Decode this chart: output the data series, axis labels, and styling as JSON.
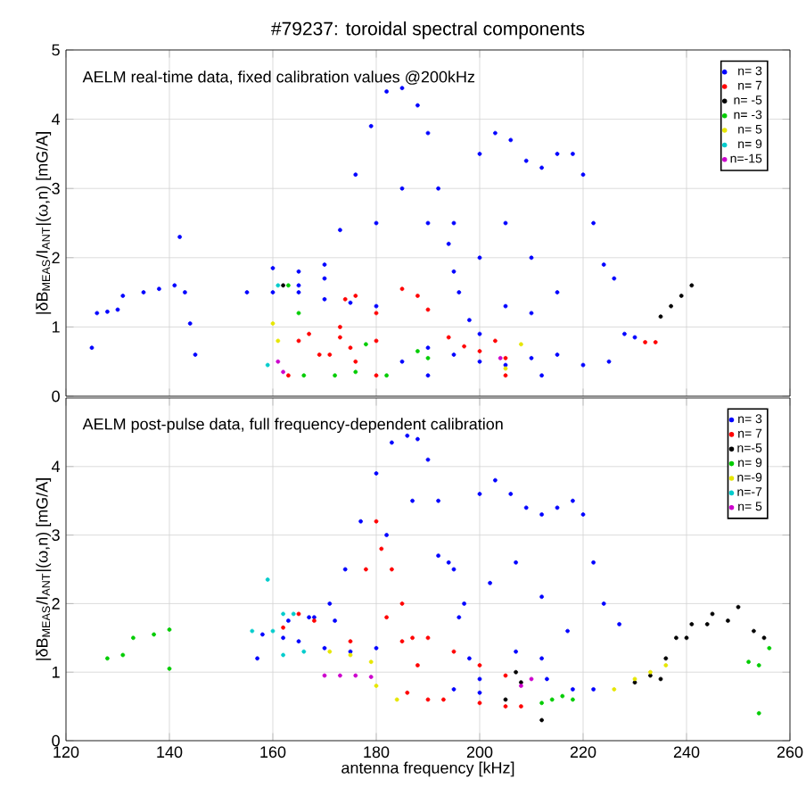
{
  "chart_data": [
    {
      "type": "scatter",
      "title": "#79237: toroidal spectral components",
      "ylabel": "|δB$_{MEAS}$/I$_{ANT}$|(ω,n) [mG/A]",
      "annotations": [
        "AELM real-time data, fixed calibration values @200kHz"
      ],
      "xlim": [
        120,
        260
      ],
      "xticks": [
        120,
        140,
        160,
        180,
        200,
        220,
        240,
        260
      ],
      "ylim": [
        0,
        5
      ],
      "yticks": [
        0,
        1,
        2,
        3,
        4,
        5
      ],
      "tick_labels": "y",
      "grid": true,
      "legend": "top right",
      "marker": "circle",
      "series": [
        {
          "name": "n= 3",
          "color": "#0000ff",
          "x": [
            125,
            126,
            128,
            130,
            131,
            135,
            138,
            141,
            143,
            144,
            145,
            142,
            155,
            160,
            165,
            170,
            175,
            180,
            160,
            165,
            170,
            165,
            170,
            173,
            176,
            179,
            182,
            185,
            188,
            190,
            192,
            194,
            196,
            198,
            200,
            195,
            200,
            203,
            206,
            209,
            212,
            215,
            218,
            220,
            222,
            224,
            226,
            180,
            185,
            190,
            195,
            200,
            205,
            210,
            215,
            210,
            205,
            185,
            190,
            195,
            200,
            205,
            210,
            215,
            220,
            225,
            228,
            230,
            212,
            190
          ],
          "values": [
            0.7,
            1.2,
            1.22,
            1.25,
            1.45,
            1.5,
            1.55,
            1.6,
            1.5,
            1.05,
            0.6,
            2.3,
            1.5,
            1.5,
            1.5,
            1.4,
            1.35,
            1.3,
            1.85,
            1.8,
            1.7,
            1.6,
            1.9,
            2.4,
            3.2,
            3.9,
            4.4,
            4.45,
            4.2,
            3.8,
            3.0,
            2.2,
            1.5,
            1.1,
            0.9,
            2.5,
            3.5,
            3.8,
            3.7,
            3.4,
            3.3,
            3.5,
            3.5,
            3.2,
            2.5,
            1.9,
            1.7,
            2.5,
            3.0,
            2.5,
            1.8,
            2.0,
            2.5,
            2.0,
            1.5,
            1.2,
            1.3,
            0.5,
            0.7,
            0.6,
            0.5,
            0.45,
            0.55,
            0.6,
            0.45,
            0.5,
            0.9,
            0.85,
            0.3,
            0.3
          ]
        },
        {
          "name": "n= 7",
          "color": "#ff0000",
          "x": [
            163,
            165,
            167,
            169,
            171,
            173,
            175,
            176,
            173,
            174,
            176,
            180,
            180,
            180,
            185,
            188,
            190,
            194,
            197,
            200,
            203,
            232,
            234,
            205,
            205
          ],
          "values": [
            0.3,
            0.8,
            0.9,
            0.6,
            0.6,
            0.85,
            0.7,
            0.5,
            1.0,
            1.4,
            1.45,
            0.3,
            0.8,
            1.2,
            1.55,
            1.45,
            1.25,
            0.85,
            0.72,
            0.65,
            0.8,
            0.78,
            0.78,
            0.3,
            0.55
          ]
        },
        {
          "name": "n= -5",
          "color": "#000000",
          "x": [
            235,
            237,
            239,
            241,
            162
          ],
          "values": [
            1.15,
            1.3,
            1.45,
            1.6,
            1.6
          ]
        },
        {
          "name": "n= -3",
          "color": "#00cc00",
          "x": [
            163,
            165,
            166,
            172,
            178,
            182,
            188,
            190,
            176
          ],
          "values": [
            1.6,
            1.2,
            0.3,
            0.3,
            0.75,
            0.3,
            0.65,
            0.55,
            0.35
          ]
        },
        {
          "name": "n= 5",
          "color": "#e6e600",
          "x": [
            160,
            161,
            205,
            208
          ],
          "values": [
            1.05,
            0.8,
            0.4,
            0.75
          ]
        },
        {
          "name": "n= 9",
          "color": "#00cccc",
          "x": [
            161,
            159
          ],
          "values": [
            1.6,
            0.45
          ]
        },
        {
          "name": "n=-15",
          "color": "#cc00cc",
          "x": [
            162,
            161,
            204
          ],
          "values": [
            0.35,
            0.5,
            0.55
          ]
        }
      ]
    },
    {
      "type": "scatter",
      "xlabel": "antenna frequency [kHz]",
      "ylabel": "|δB$_{MEAS}$/I$_{ANT}$|(ω,n) [mG/A]",
      "annotations": [
        "AELM post-pulse data, full frequency-dependent calibration"
      ],
      "xlim": [
        120,
        260
      ],
      "xticks": [
        120,
        140,
        160,
        180,
        200,
        220,
        240,
        260
      ],
      "ylim": [
        0,
        5
      ],
      "yticks": [
        0,
        1,
        2,
        3,
        4
      ],
      "grid": true,
      "legend": "top right",
      "marker": "circle",
      "series": [
        {
          "name": "n= 3",
          "color": "#0000ff",
          "x": [
            157,
            158,
            162,
            165,
            170,
            175,
            180,
            163,
            167,
            172,
            168,
            171,
            174,
            177,
            180,
            183,
            186,
            188,
            190,
            192,
            194,
            196,
            198,
            200,
            195,
            200,
            203,
            206,
            209,
            212,
            215,
            218,
            220,
            222,
            224,
            227,
            182,
            187,
            192,
            197,
            202,
            207,
            212,
            217,
            212,
            207,
            195,
            200,
            213,
            222,
            218
          ],
          "values": [
            1.2,
            1.55,
            1.5,
            1.45,
            1.35,
            1.3,
            1.35,
            1.75,
            1.8,
            1.75,
            1.8,
            2.0,
            2.5,
            3.2,
            3.9,
            4.35,
            4.45,
            4.4,
            4.1,
            3.5,
            2.6,
            1.8,
            1.2,
            0.9,
            2.5,
            3.6,
            3.8,
            3.6,
            3.4,
            3.3,
            3.4,
            3.5,
            3.3,
            2.6,
            2.0,
            1.7,
            3.0,
            3.5,
            2.7,
            2.0,
            2.3,
            2.6,
            2.1,
            1.6,
            1.2,
            1.3,
            0.75,
            0.7,
            0.9,
            0.75,
            0.75
          ]
        },
        {
          "name": "n= 7",
          "color": "#ff0000",
          "x": [
            162,
            165,
            168,
            180,
            181,
            183,
            185,
            187,
            188,
            186,
            190,
            178,
            182,
            175,
            185,
            190,
            195,
            200,
            205,
            200,
            205,
            208,
            193
          ],
          "values": [
            1.65,
            1.85,
            1.75,
            3.2,
            2.8,
            2.5,
            2.0,
            1.5,
            1.1,
            0.7,
            0.6,
            2.5,
            1.8,
            1.45,
            1.45,
            1.5,
            1.3,
            1.1,
            0.95,
            0.55,
            0.5,
            0.5,
            0.6
          ]
        },
        {
          "name": "n=-5",
          "color": "#000000",
          "x": [
            205,
            207,
            208,
            230,
            233,
            236,
            238,
            241,
            245,
            250,
            240,
            244,
            248,
            253,
            255,
            235,
            212
          ],
          "values": [
            0.6,
            1.0,
            0.85,
            0.85,
            0.95,
            1.2,
            1.5,
            1.7,
            1.85,
            1.95,
            1.5,
            1.7,
            1.75,
            1.6,
            1.5,
            0.9,
            0.3
          ]
        },
        {
          "name": "n= 9",
          "color": "#00cc00",
          "x": [
            128,
            131,
            133,
            137,
            140,
            140,
            212,
            214,
            216,
            218,
            254,
            256,
            254,
            252
          ],
          "values": [
            1.2,
            1.25,
            1.5,
            1.55,
            1.62,
            1.05,
            0.55,
            0.6,
            0.65,
            0.6,
            1.1,
            1.35,
            0.4,
            1.15
          ]
        },
        {
          "name": "n=-9",
          "color": "#e6e600",
          "x": [
            171,
            175,
            179,
            180,
            184,
            226,
            230,
            233,
            236
          ],
          "values": [
            1.3,
            1.25,
            1.15,
            0.8,
            0.6,
            0.75,
            0.9,
            1.0,
            1.1
          ]
        },
        {
          "name": "n=-7",
          "color": "#00cccc",
          "x": [
            156,
            160,
            162,
            164,
            166,
            159,
            162
          ],
          "values": [
            1.6,
            1.6,
            1.85,
            1.85,
            1.3,
            2.35,
            1.25
          ]
        },
        {
          "name": "n= 5",
          "color": "#cc00cc",
          "x": [
            170,
            173,
            176,
            179,
            208,
            210
          ],
          "values": [
            0.95,
            0.95,
            0.95,
            0.93,
            0.8,
            0.9
          ]
        }
      ]
    }
  ]
}
